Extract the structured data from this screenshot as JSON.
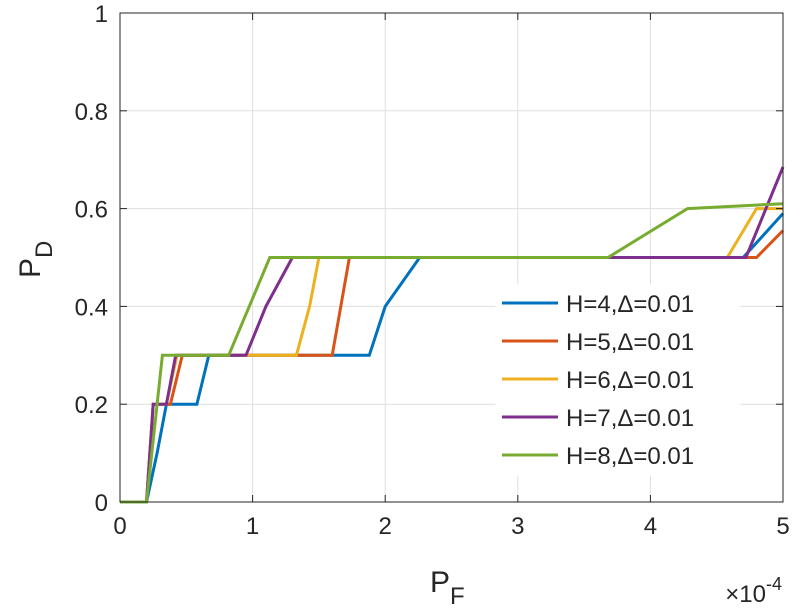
{
  "chart_data": {
    "type": "line",
    "title": "",
    "xlabel": {
      "main": "P",
      "sub": "F"
    },
    "ylabel": {
      "main": "P",
      "sub": "D"
    },
    "x_multiplier": {
      "base": "×10",
      "exp": "-4"
    },
    "xlim": [
      0,
      5
    ],
    "ylim": [
      0,
      1
    ],
    "xticks": [
      "0",
      "1",
      "2",
      "3",
      "4",
      "5"
    ],
    "yticks": [
      "0",
      "0.2",
      "0.4",
      "0.6",
      "0.8",
      "1"
    ],
    "grid": true,
    "legend_position": "right-middle",
    "series": [
      {
        "name": "H=4,Δ=0.01",
        "color": "#0072BD",
        "x": [
          0.0,
          0.2,
          0.28,
          0.35,
          0.58,
          0.67,
          1.88,
          2.0,
          2.26,
          3.6,
          4.64,
          4.7,
          5.0
        ],
        "y": [
          0.0,
          0.0,
          0.1,
          0.2,
          0.2,
          0.3,
          0.3,
          0.4,
          0.5,
          0.5,
          0.5,
          0.5,
          0.59
        ]
      },
      {
        "name": "H=5,Δ=0.01",
        "color": "#D95319",
        "x": [
          0.0,
          0.2,
          0.25,
          0.38,
          0.47,
          1.6,
          1.73,
          3.6,
          4.8,
          5.0
        ],
        "y": [
          0.0,
          0.0,
          0.2,
          0.2,
          0.3,
          0.3,
          0.5,
          0.5,
          0.5,
          0.555
        ]
      },
      {
        "name": "H=6,Δ=0.01",
        "color": "#EDB120",
        "x": [
          0.0,
          0.2,
          0.25,
          0.35,
          0.43,
          1.33,
          1.43,
          1.5,
          3.6,
          4.58,
          4.8,
          5.0
        ],
        "y": [
          0.0,
          0.0,
          0.2,
          0.2,
          0.3,
          0.3,
          0.4,
          0.5,
          0.5,
          0.5,
          0.6,
          0.6
        ]
      },
      {
        "name": "H=7,Δ=0.01",
        "color": "#7E2F8E",
        "x": [
          0.0,
          0.2,
          0.25,
          0.35,
          0.42,
          0.95,
          1.1,
          1.3,
          3.6,
          4.72,
          5.0
        ],
        "y": [
          0.0,
          0.0,
          0.2,
          0.2,
          0.3,
          0.3,
          0.4,
          0.5,
          0.5,
          0.5,
          0.685
        ]
      },
      {
        "name": "H=8,Δ=0.01",
        "color": "#77AC30",
        "x": [
          0.0,
          0.2,
          0.32,
          0.82,
          1.13,
          3.68,
          4.28,
          5.0
        ],
        "y": [
          0.0,
          0.0,
          0.3,
          0.3,
          0.5,
          0.5,
          0.6,
          0.61
        ]
      }
    ]
  }
}
